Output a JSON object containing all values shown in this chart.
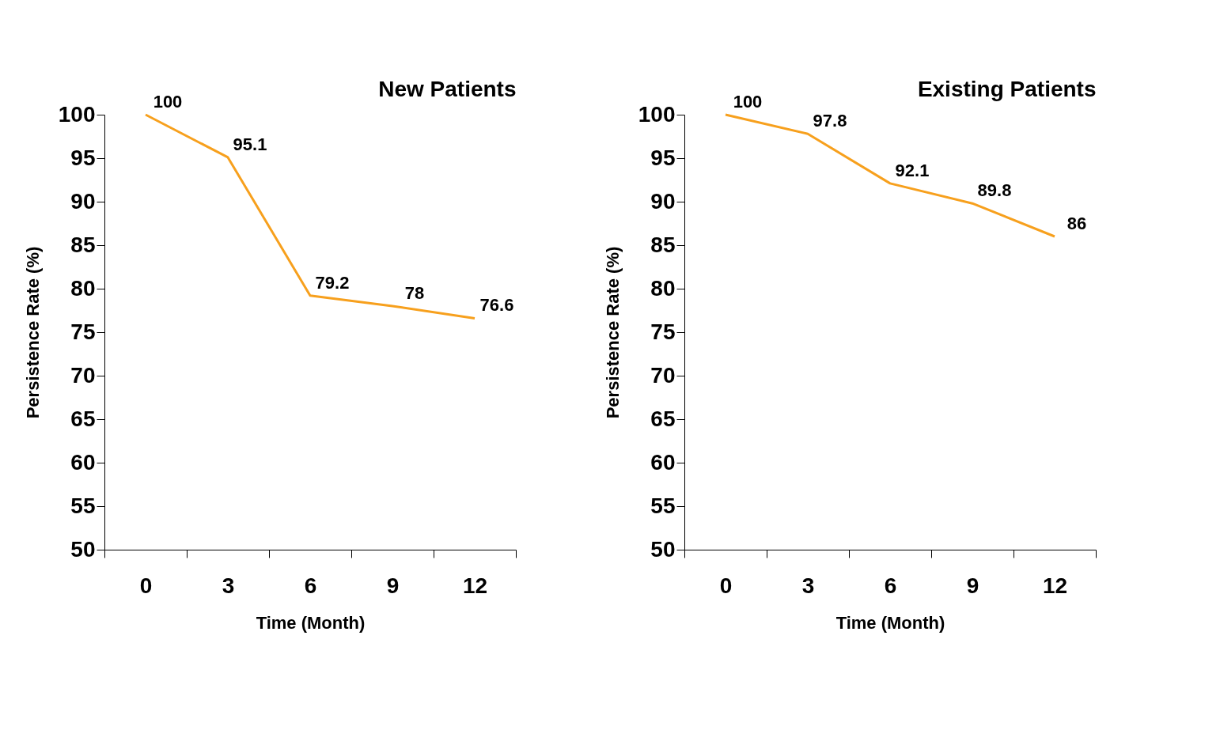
{
  "chart_data": [
    {
      "type": "line",
      "title": "New Patients",
      "xlabel": "Time (Month)",
      "ylabel": "Persistence Rate (%)",
      "categories": [
        "0",
        "3",
        "6",
        "9",
        "12"
      ],
      "series": [
        {
          "color": "#f7a01d",
          "values": [
            100,
            95.1,
            79.2,
            78,
            76.6
          ]
        }
      ],
      "ylim": [
        50,
        100
      ],
      "yticks": [
        50,
        55,
        60,
        65,
        70,
        75,
        80,
        85,
        90,
        95,
        100
      ],
      "data_labels": true,
      "grid": false,
      "legend": false
    },
    {
      "type": "line",
      "title": "Existing Patients",
      "xlabel": "Time (Month)",
      "ylabel": "Persistence Rate (%)",
      "categories": [
        "0",
        "3",
        "6",
        "9",
        "12"
      ],
      "series": [
        {
          "color": "#f7a01d",
          "values": [
            100,
            97.8,
            92.1,
            89.8,
            86
          ]
        }
      ],
      "ylim": [
        50,
        100
      ],
      "yticks": [
        50,
        55,
        60,
        65,
        70,
        75,
        80,
        85,
        90,
        95,
        100
      ],
      "data_labels": true,
      "grid": false,
      "legend": false
    }
  ]
}
